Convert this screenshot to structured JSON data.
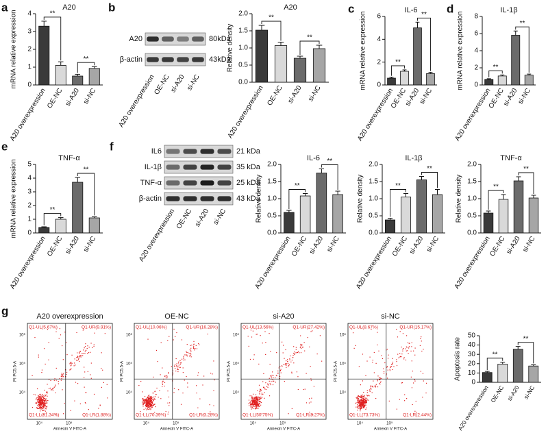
{
  "panel_labels": [
    "a",
    "b",
    "c",
    "d",
    "e",
    "f",
    "g"
  ],
  "chart_data": [
    {
      "type": "bar",
      "title": "A20",
      "ylabel": "mRNA relative expression",
      "categories": [
        "A20 overexpression",
        "OE-NC",
        "si-A20",
        "si-NC"
      ],
      "values": [
        3.3,
        1.1,
        0.5,
        0.93
      ],
      "errors": [
        0.28,
        0.2,
        0.1,
        0.1
      ],
      "colors": [
        "#3a3a3a",
        "#d9d9d9",
        "#6b6b6b",
        "#a6a6a6"
      ],
      "ylim": [
        0,
        4
      ],
      "yticks": [
        0,
        1,
        2,
        3,
        4
      ],
      "annotations": [
        "**",
        "**"
      ]
    },
    {
      "type": "bar",
      "title": "A20",
      "ylabel": "Relative density",
      "categories": [
        "A20 overexpression",
        "OE-NC",
        "si-A20",
        "si-NC"
      ],
      "values": [
        1.52,
        1.07,
        0.7,
        0.98
      ],
      "errors": [
        0.14,
        0.1,
        0.06,
        0.1
      ],
      "colors": [
        "#3a3a3a",
        "#d9d9d9",
        "#6b6b6b",
        "#a6a6a6"
      ],
      "ylim": [
        0,
        2
      ],
      "yticks": [
        {
          "value": 0,
          "label": "0.0"
        },
        0.5,
        {
          "value": 1,
          "label": "1.0"
        },
        1.5,
        {
          "value": 2,
          "label": "2.0"
        }
      ],
      "annotations": [
        "**",
        "**"
      ]
    },
    {
      "type": "bar",
      "title": "IL-6",
      "ylabel": "mRNA relative expression",
      "categories": [
        "A20 overexpression",
        "OE-NC",
        "si-A20",
        "si-NC"
      ],
      "values": [
        0.6,
        1.2,
        5.0,
        1.0
      ],
      "errors": [
        0.08,
        0.12,
        0.5,
        0.1
      ],
      "colors": [
        "#3a3a3a",
        "#d9d9d9",
        "#6b6b6b",
        "#a6a6a6"
      ],
      "ylim": [
        0,
        6
      ],
      "yticks": [
        0,
        2,
        4,
        6
      ],
      "annotations": [
        "**",
        "**"
      ]
    },
    {
      "type": "bar",
      "title": "IL-1β",
      "ylabel": "mRNA relative expression",
      "categories": [
        "A20 overexpression",
        "OE-NC",
        "si-A20",
        "si-NC"
      ],
      "values": [
        0.65,
        1.05,
        5.8,
        1.15
      ],
      "errors": [
        0.08,
        0.12,
        0.5,
        0.12
      ],
      "colors": [
        "#3a3a3a",
        "#d9d9d9",
        "#6b6b6b",
        "#a6a6a6"
      ],
      "ylim": [
        0,
        8
      ],
      "yticks": [
        0,
        2,
        4,
        6,
        8
      ],
      "annotations": [
        "**",
        "**"
      ]
    },
    {
      "type": "bar",
      "title": "TNF-α",
      "ylabel": "mRNA relative expression",
      "categories": [
        "A20 overexpression",
        "OE-NC",
        "si-A20",
        "si-NC"
      ],
      "values": [
        0.4,
        1.0,
        3.7,
        1.1
      ],
      "errors": [
        0.05,
        0.12,
        0.35,
        0.08
      ],
      "colors": [
        "#3a3a3a",
        "#d9d9d9",
        "#6b6b6b",
        "#a6a6a6"
      ],
      "ylim": [
        0,
        5
      ],
      "yticks": [
        0,
        1,
        2,
        3,
        4,
        5
      ],
      "annotations": [
        "**",
        "**"
      ]
    },
    {
      "type": "bar",
      "title": "IL-6",
      "ylabel": "Relative density",
      "categories": [
        "A20 overexpression",
        "OE-NC",
        "si-A20",
        "si-NC"
      ],
      "values": [
        0.6,
        1.08,
        1.75,
        1.12
      ],
      "errors": [
        0.06,
        0.07,
        0.12,
        0.1
      ],
      "colors": [
        "#3a3a3a",
        "#d9d9d9",
        "#6b6b6b",
        "#a6a6a6"
      ],
      "ylim": [
        0,
        2
      ],
      "yticks": [
        {
          "value": 0,
          "label": "0.0"
        },
        0.5,
        {
          "value": 1,
          "label": "1.0"
        },
        1.5,
        {
          "value": 2,
          "label": "2.0"
        }
      ],
      "annotations": [
        "**",
        "**"
      ]
    },
    {
      "type": "bar",
      "title": "IL-1β",
      "ylabel": "Relative density",
      "categories": [
        "A20 overexpression",
        "OE-NC",
        "si-A20",
        "si-NC"
      ],
      "values": [
        0.38,
        1.05,
        1.55,
        1.12
      ],
      "errors": [
        0.05,
        0.1,
        0.1,
        0.15
      ],
      "colors": [
        "#3a3a3a",
        "#d9d9d9",
        "#6b6b6b",
        "#a6a6a6"
      ],
      "ylim": [
        0,
        2
      ],
      "yticks": [
        {
          "value": 0,
          "label": "0.0"
        },
        0.5,
        {
          "value": 1,
          "label": "1.0"
        },
        1.5,
        {
          "value": 2,
          "label": "2.0"
        }
      ],
      "annotations": [
        "**",
        "**"
      ]
    },
    {
      "type": "bar",
      "title": "TNF-α",
      "ylabel": "Relative density",
      "categories": [
        "A20 overexpression",
        "OE-NC",
        "si-A20",
        "si-NC"
      ],
      "values": [
        0.58,
        0.98,
        1.52,
        1.02
      ],
      "errors": [
        0.06,
        0.14,
        0.12,
        0.08
      ],
      "colors": [
        "#3a3a3a",
        "#d9d9d9",
        "#6b6b6b",
        "#a6a6a6"
      ],
      "ylim": [
        0,
        2
      ],
      "yticks": [
        {
          "value": 0,
          "label": "0.0"
        },
        0.5,
        {
          "value": 1,
          "label": "1.0"
        },
        1.5,
        {
          "value": 2,
          "label": "2.0"
        }
      ],
      "annotations": [
        "**",
        "**"
      ]
    },
    {
      "type": "bar",
      "title": null,
      "ylabel": "Apoptosis rate",
      "categories": [
        "A20 overexpression",
        "OE-NC",
        "si-A20",
        "si-NC"
      ],
      "values": [
        10.5,
        19.5,
        35.5,
        17.5
      ],
      "errors": [
        1.2,
        2.0,
        3.0,
        1.3
      ],
      "colors": [
        "#3a3a3a",
        "#d9d9d9",
        "#6b6b6b",
        "#a6a6a6"
      ],
      "ylim": [
        0,
        50
      ],
      "yticks": [
        0,
        10,
        20,
        30,
        40,
        50
      ],
      "annotations": [
        "**",
        "**"
      ]
    }
  ],
  "blot_b": {
    "rows": [
      {
        "label": "A20",
        "size": "80kDa"
      },
      {
        "label": "β-actin",
        "size": "43kDa"
      }
    ],
    "lanes": [
      "A20 overexpression",
      "OE-NC",
      "si-A20",
      "si-NC"
    ]
  },
  "blot_f": {
    "rows": [
      {
        "label": "IL6",
        "size": "21 kDa"
      },
      {
        "label": "IL-1β",
        "size": "35 kDa"
      },
      {
        "label": "TNF-α",
        "size": "25 kDa"
      },
      {
        "label": "β-actin",
        "size": "43 kDa"
      }
    ],
    "lanes": [
      "A20 overexpression",
      "OE-NC",
      "si-A20",
      "si-NC"
    ]
  },
  "flow": {
    "x_label": "Annexin V FITC-A",
    "y_label": "PI PC5.5-A",
    "x_ticks": [
      "10⁴",
      "10⁵"
    ],
    "y_ticks": [
      "10⁶",
      "10⁵",
      "10⁴"
    ],
    "panels": [
      {
        "title": "A20 overexpression",
        "quadrants": [
          "Q1-UL(5.67%)",
          "Q1-UR(9.91%)",
          "Q1-LL(81.34%)",
          "Q1-LR(1.88%)"
        ]
      },
      {
        "title": "OE-NC",
        "quadrants": [
          "Q1-UL(10.06%)",
          "Q1-UR(16.28%)",
          "Q1-LL(70.39%)",
          "Q1-LR(3.28%)"
        ]
      },
      {
        "title": "si-A20",
        "quadrants": [
          "Q1-UL(13.56%)",
          "Q1-UR(27.42%)",
          "Q1-LL(50.75%)",
          "Q1-LR(8.27%)"
        ]
      },
      {
        "title": "si-NC",
        "quadrants": [
          "Q1-UL(8.67%)",
          "Q1-UR(15.17%)",
          "Q1-LL(73.73%)",
          "Q1-LR(2.44%)"
        ]
      }
    ]
  }
}
